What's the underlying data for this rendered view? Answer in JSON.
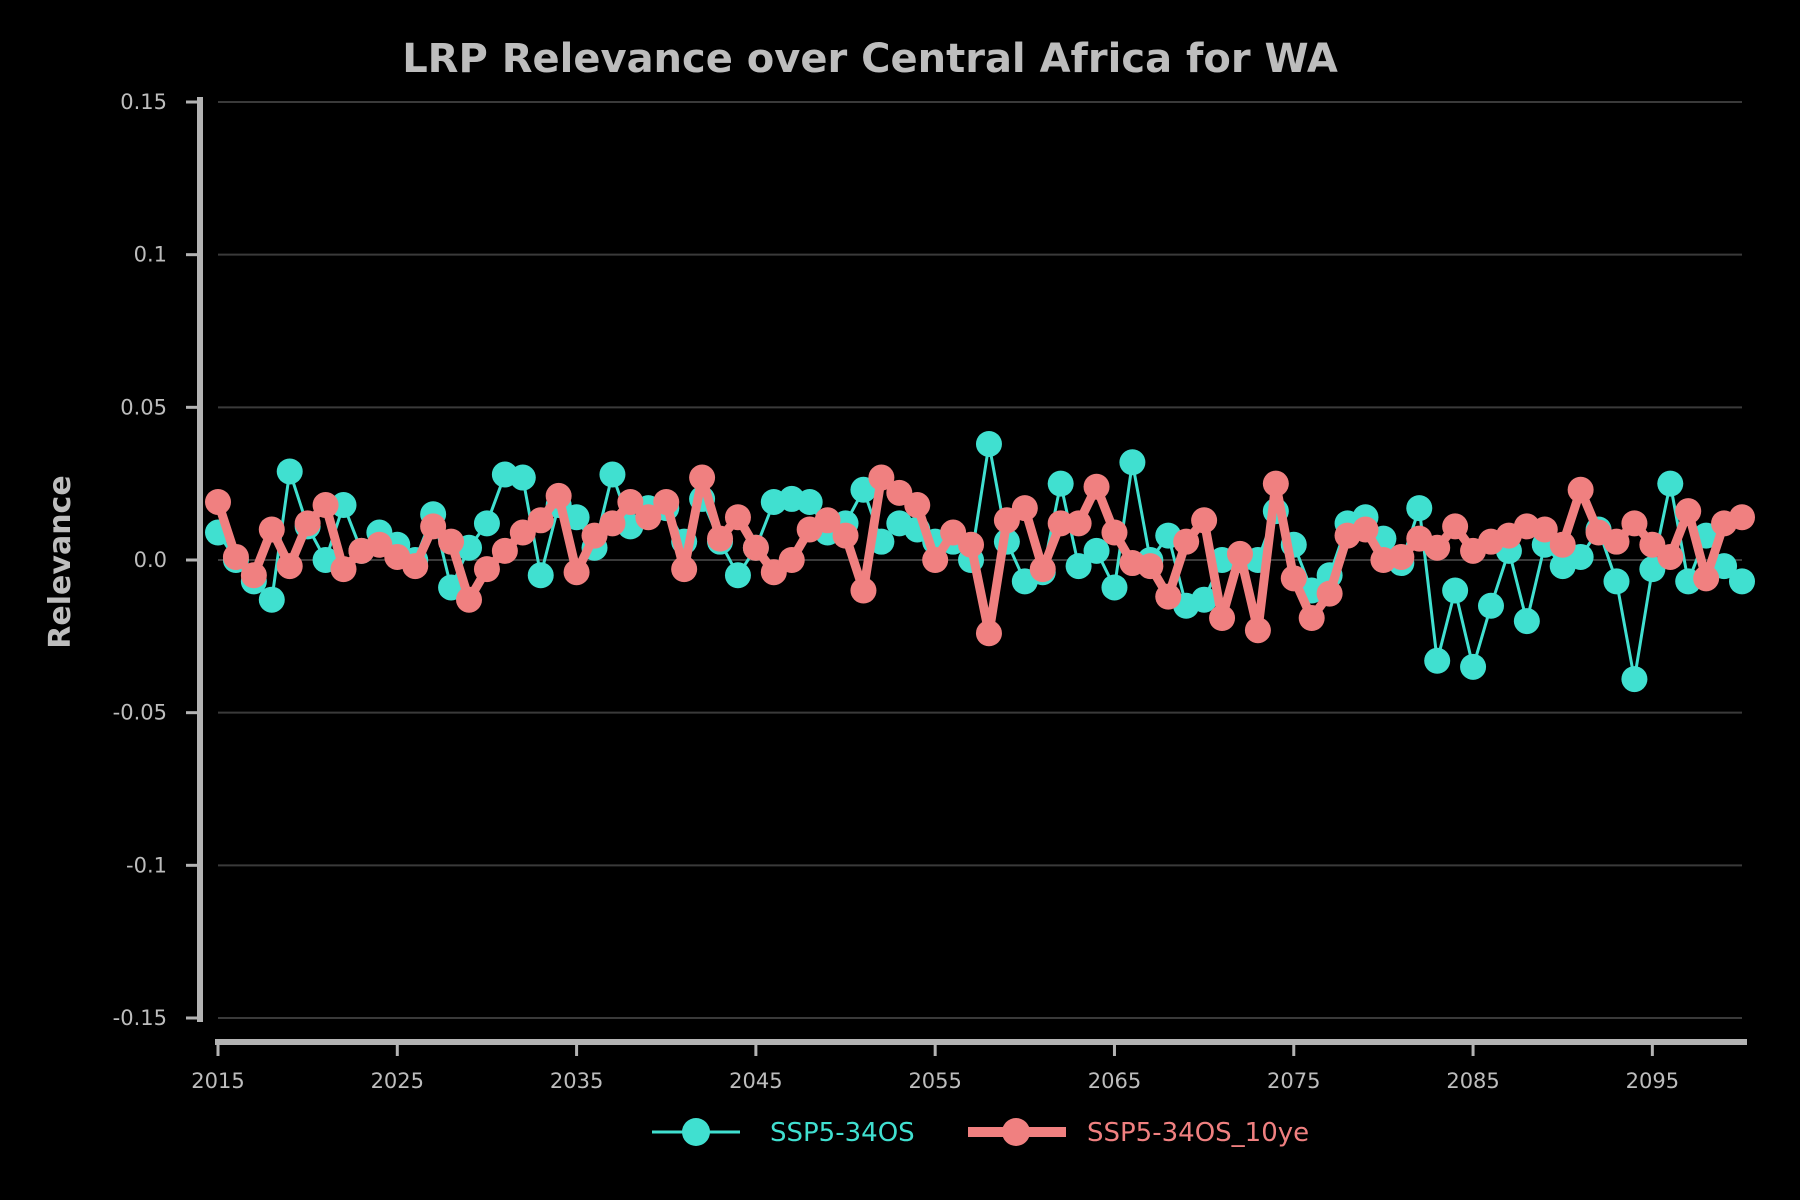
{
  "chart_data": {
    "type": "line",
    "title": "LRP Relevance over Central Africa for WA",
    "xlabel": "",
    "ylabel": "Relevance",
    "xlim": [
      2015,
      2100
    ],
    "ylim": [
      -0.15,
      0.15
    ],
    "xticks": [
      2015,
      2025,
      2035,
      2045,
      2055,
      2065,
      2075,
      2085,
      2095
    ],
    "xtick_labels": [
      "2015",
      "2025",
      "2035",
      "2045",
      "2055",
      "2065",
      "2075",
      "2085",
      "2095"
    ],
    "yticks": [
      0.15,
      0.1,
      0.05,
      0.0,
      -0.05,
      -0.1,
      -0.15
    ],
    "ytick_labels": [
      "0.15",
      "0.1",
      "0.05",
      "0.0",
      "-0.05",
      "-0.1",
      "-0.15"
    ],
    "grid": true,
    "legend_position": "bottom-center",
    "x": [
      2015,
      2016,
      2017,
      2018,
      2019,
      2020,
      2021,
      2022,
      2023,
      2024,
      2025,
      2026,
      2027,
      2028,
      2029,
      2030,
      2031,
      2032,
      2033,
      2034,
      2035,
      2036,
      2037,
      2038,
      2039,
      2040,
      2041,
      2042,
      2043,
      2044,
      2045,
      2046,
      2047,
      2048,
      2049,
      2050,
      2051,
      2052,
      2053,
      2054,
      2055,
      2056,
      2057,
      2058,
      2059,
      2060,
      2061,
      2062,
      2063,
      2064,
      2065,
      2066,
      2067,
      2068,
      2069,
      2070,
      2071,
      2072,
      2073,
      2074,
      2075,
      2076,
      2077,
      2078,
      2079,
      2080,
      2081,
      2082,
      2083,
      2084,
      2085,
      2086,
      2087,
      2088,
      2089,
      2090,
      2091,
      2092,
      2093,
      2094,
      2095,
      2096,
      2097,
      2098,
      2099,
      2100
    ],
    "series": [
      {
        "name": "SSP5-34OS",
        "color": "#40e0d0",
        "values": [
          0.009,
          0.0,
          -0.007,
          -0.013,
          0.029,
          0.011,
          0.0,
          0.018,
          0.003,
          0.009,
          0.005,
          0.0,
          0.015,
          -0.009,
          0.004,
          0.012,
          0.028,
          0.027,
          -0.005,
          0.018,
          0.014,
          0.004,
          0.028,
          0.011,
          0.017,
          0.017,
          0.006,
          0.02,
          0.006,
          -0.005,
          0.004,
          0.019,
          0.02,
          0.019,
          0.009,
          0.012,
          0.023,
          0.006,
          0.012,
          0.01,
          0.006,
          0.006,
          0.0,
          0.038,
          0.006,
          -0.007,
          -0.004,
          0.025,
          -0.002,
          0.003,
          -0.009,
          0.032,
          0.0,
          0.008,
          -0.015,
          -0.013,
          0.0,
          0.0,
          0.0,
          0.016,
          0.005,
          -0.01,
          -0.005,
          0.012,
          0.014,
          0.007,
          -0.001,
          0.017,
          -0.033,
          -0.01,
          -0.035,
          -0.015,
          0.003,
          -0.02,
          0.005,
          -0.002,
          0.001,
          0.01,
          -0.007,
          -0.039,
          -0.003,
          0.025,
          -0.007,
          0.008,
          -0.002,
          -0.007
        ]
      },
      {
        "name": "SSP5-34OS_10ye",
        "color": "#f08080",
        "values": [
          0.019,
          0.001,
          -0.005,
          0.01,
          -0.002,
          0.012,
          0.018,
          -0.003,
          0.003,
          0.005,
          0.001,
          -0.002,
          0.011,
          0.006,
          -0.013,
          -0.003,
          0.003,
          0.009,
          0.013,
          0.021,
          -0.004,
          0.008,
          0.012,
          0.019,
          0.014,
          0.019,
          -0.003,
          0.027,
          0.007,
          0.014,
          0.004,
          -0.004,
          0.0,
          0.01,
          0.013,
          0.008,
          -0.01,
          0.027,
          0.022,
          0.018,
          0.0,
          0.009,
          0.005,
          -0.024,
          0.013,
          0.017,
          -0.003,
          0.012,
          0.012,
          0.024,
          0.009,
          -0.001,
          -0.002,
          -0.012,
          0.006,
          0.013,
          -0.019,
          0.002,
          -0.023,
          0.025,
          -0.006,
          -0.019,
          -0.011,
          0.008,
          0.01,
          0.0,
          0.001,
          0.007,
          0.004,
          0.011,
          0.003,
          0.006,
          0.008,
          0.011,
          0.01,
          0.005,
          0.023,
          0.009,
          0.006,
          0.012,
          0.005,
          0.001,
          0.016,
          -0.006,
          0.012,
          0.014
        ]
      }
    ]
  }
}
